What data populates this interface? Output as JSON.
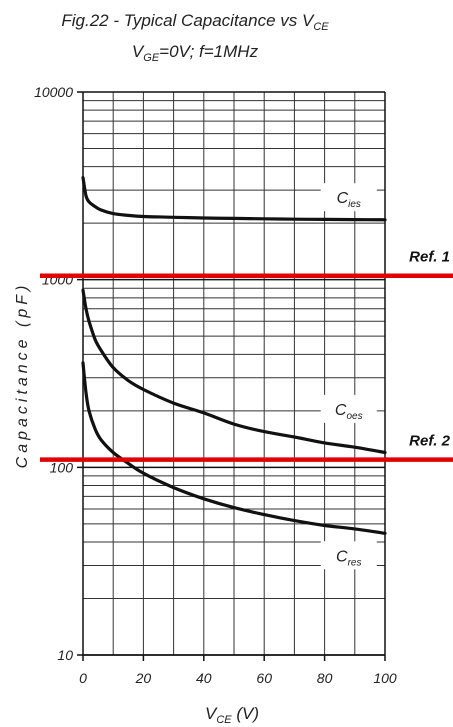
{
  "chart_data": {
    "type": "line",
    "title": {
      "prefix": "Fig.22 - Typical Capacitance vs V",
      "sub": "CE"
    },
    "subtitle": {
      "v": "V",
      "v_sub": "GE",
      "rest": "=0V; f=1MHz"
    },
    "xlabel": {
      "v": "V",
      "v_sub": "CE",
      "rest": " (V)"
    },
    "ylabel": "Capacitance (pF)",
    "x_scale": "linear",
    "y_scale": "log",
    "xlim": [
      0,
      100
    ],
    "ylim": [
      10,
      10000
    ],
    "x_ticks": [
      "0",
      "20",
      "40",
      "60",
      "80",
      "100"
    ],
    "y_ticks": [
      "10",
      "100",
      "1000",
      "10000"
    ],
    "grid": true,
    "series": [
      {
        "name": "C",
        "name_sub": "ies",
        "color": "#111111",
        "x": [
          0,
          1,
          2,
          4,
          6,
          10,
          15,
          20,
          30,
          40,
          50,
          60,
          70,
          80,
          90,
          100
        ],
        "y": [
          3500,
          2800,
          2600,
          2450,
          2350,
          2250,
          2200,
          2170,
          2150,
          2130,
          2120,
          2110,
          2100,
          2095,
          2090,
          2085
        ],
        "label_at": [
          88,
          2750
        ]
      },
      {
        "name": "C",
        "name_sub": "oes",
        "color": "#111111",
        "x": [
          0,
          1,
          2,
          4,
          6,
          10,
          15,
          20,
          30,
          40,
          50,
          60,
          70,
          80,
          90,
          100
        ],
        "y": [
          880,
          700,
          600,
          480,
          420,
          340,
          290,
          260,
          220,
          195,
          170,
          155,
          145,
          135,
          128,
          120
        ],
        "label_at": [
          88,
          205
        ]
      },
      {
        "name": "C",
        "name_sub": "res",
        "color": "#111111",
        "x": [
          0,
          1,
          2,
          4,
          6,
          10,
          15,
          20,
          30,
          40,
          50,
          60,
          70,
          80,
          90,
          100
        ],
        "y": [
          360,
          250,
          200,
          160,
          140,
          120,
          105,
          93,
          78,
          68,
          61,
          56,
          52,
          49,
          47,
          44.5
        ],
        "label_at": [
          88,
          34
        ]
      }
    ],
    "reference_lines": [
      {
        "label": "Ref. 1",
        "y": 1050,
        "color": "#e00000"
      },
      {
        "label": "Ref. 2",
        "y": 110,
        "color": "#e00000"
      }
    ]
  }
}
